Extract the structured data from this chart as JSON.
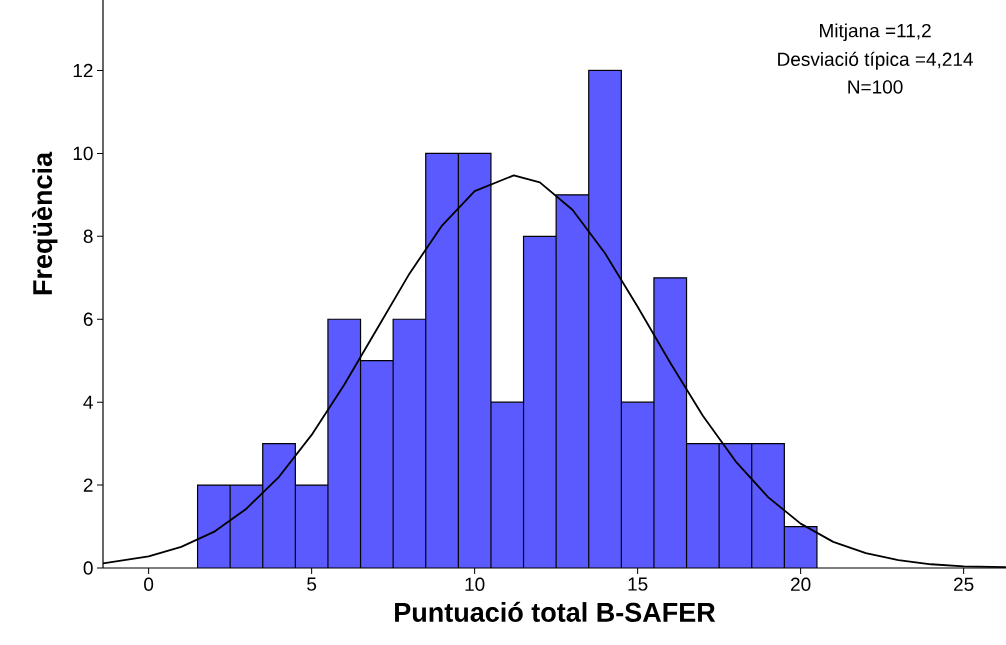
{
  "chart_data": {
    "type": "histogram",
    "xlabel": "Puntuació total B-SAFER",
    "ylabel": "Freqüència",
    "bins": [
      1.5,
      2.5,
      3.5,
      4.5,
      5.5,
      6.5,
      7.5,
      8.5,
      9.5,
      10.5,
      11.5,
      12.5,
      13.5,
      14.5,
      15.5,
      16.5,
      17.5,
      18.5,
      19.5,
      20.5
    ],
    "values": [
      2,
      2,
      3,
      2,
      6,
      5,
      6,
      10,
      10,
      4,
      8,
      9,
      12,
      4,
      7,
      3,
      3,
      3,
      1
    ],
    "color": "#5a5aff",
    "xlim": [
      -1.4,
      26.3
    ],
    "ylim": [
      0,
      13.7
    ],
    "xticks": [
      0,
      5,
      10,
      15,
      20,
      25
    ],
    "yticks": [
      0,
      2,
      4,
      6,
      8,
      10,
      12
    ],
    "annotations": [
      "Mitjana =11,2",
      "Desviació típica =4,214",
      "N=100"
    ],
    "series": [
      {
        "type": "line",
        "color": "#000000",
        "x": [
          -1.4,
          0,
          1,
          2,
          3,
          4,
          5,
          6,
          7,
          8,
          9,
          10,
          11.2,
          12,
          13,
          14,
          15,
          16,
          17,
          18,
          19,
          20,
          21,
          22,
          23,
          24,
          25,
          26.3
        ],
        "values": [
          0.11,
          0.28,
          0.51,
          0.87,
          1.43,
          2.2,
          3.21,
          4.42,
          5.76,
          7.1,
          8.26,
          9.09,
          9.47,
          9.3,
          8.64,
          7.59,
          6.3,
          4.95,
          3.67,
          2.58,
          1.71,
          1.07,
          0.63,
          0.36,
          0.19,
          0.09,
          0.04,
          0.02
        ]
      }
    ]
  }
}
